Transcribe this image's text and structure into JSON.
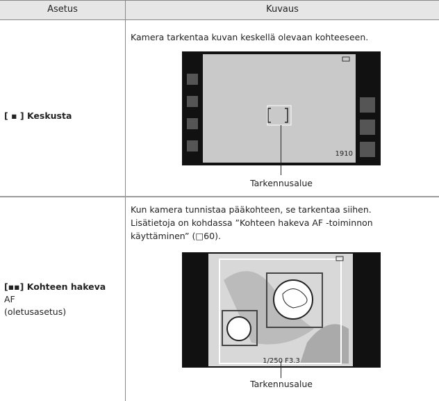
{
  "table": {
    "header": [
      "Asetus",
      "Kuvaus"
    ],
    "rows": [
      {
        "setting": [
          "[ ▪ ] Keskusta"
        ],
        "description": [
          "Kamera tarkentaa kuvan keskellä olevaan kohteeseen."
        ],
        "screen_text": [
          "1910"
        ],
        "caption": "Tarkennusalue"
      },
      {
        "setting": [
          "[▪▪] Kohteen hakeva",
          "AF",
          "(oletusasetus)"
        ],
        "description": [
          "Kun kamera tunnistaa pääkohteen, se tarkentaa siihen.",
          "Lisätietoja on kohdassa ”Kohteen hakeva AF -toiminnon",
          "käyttäminen” (□60)."
        ],
        "screen_text": [
          "1/250  F3.3"
        ],
        "caption": "Tarkennusalue"
      }
    ]
  }
}
